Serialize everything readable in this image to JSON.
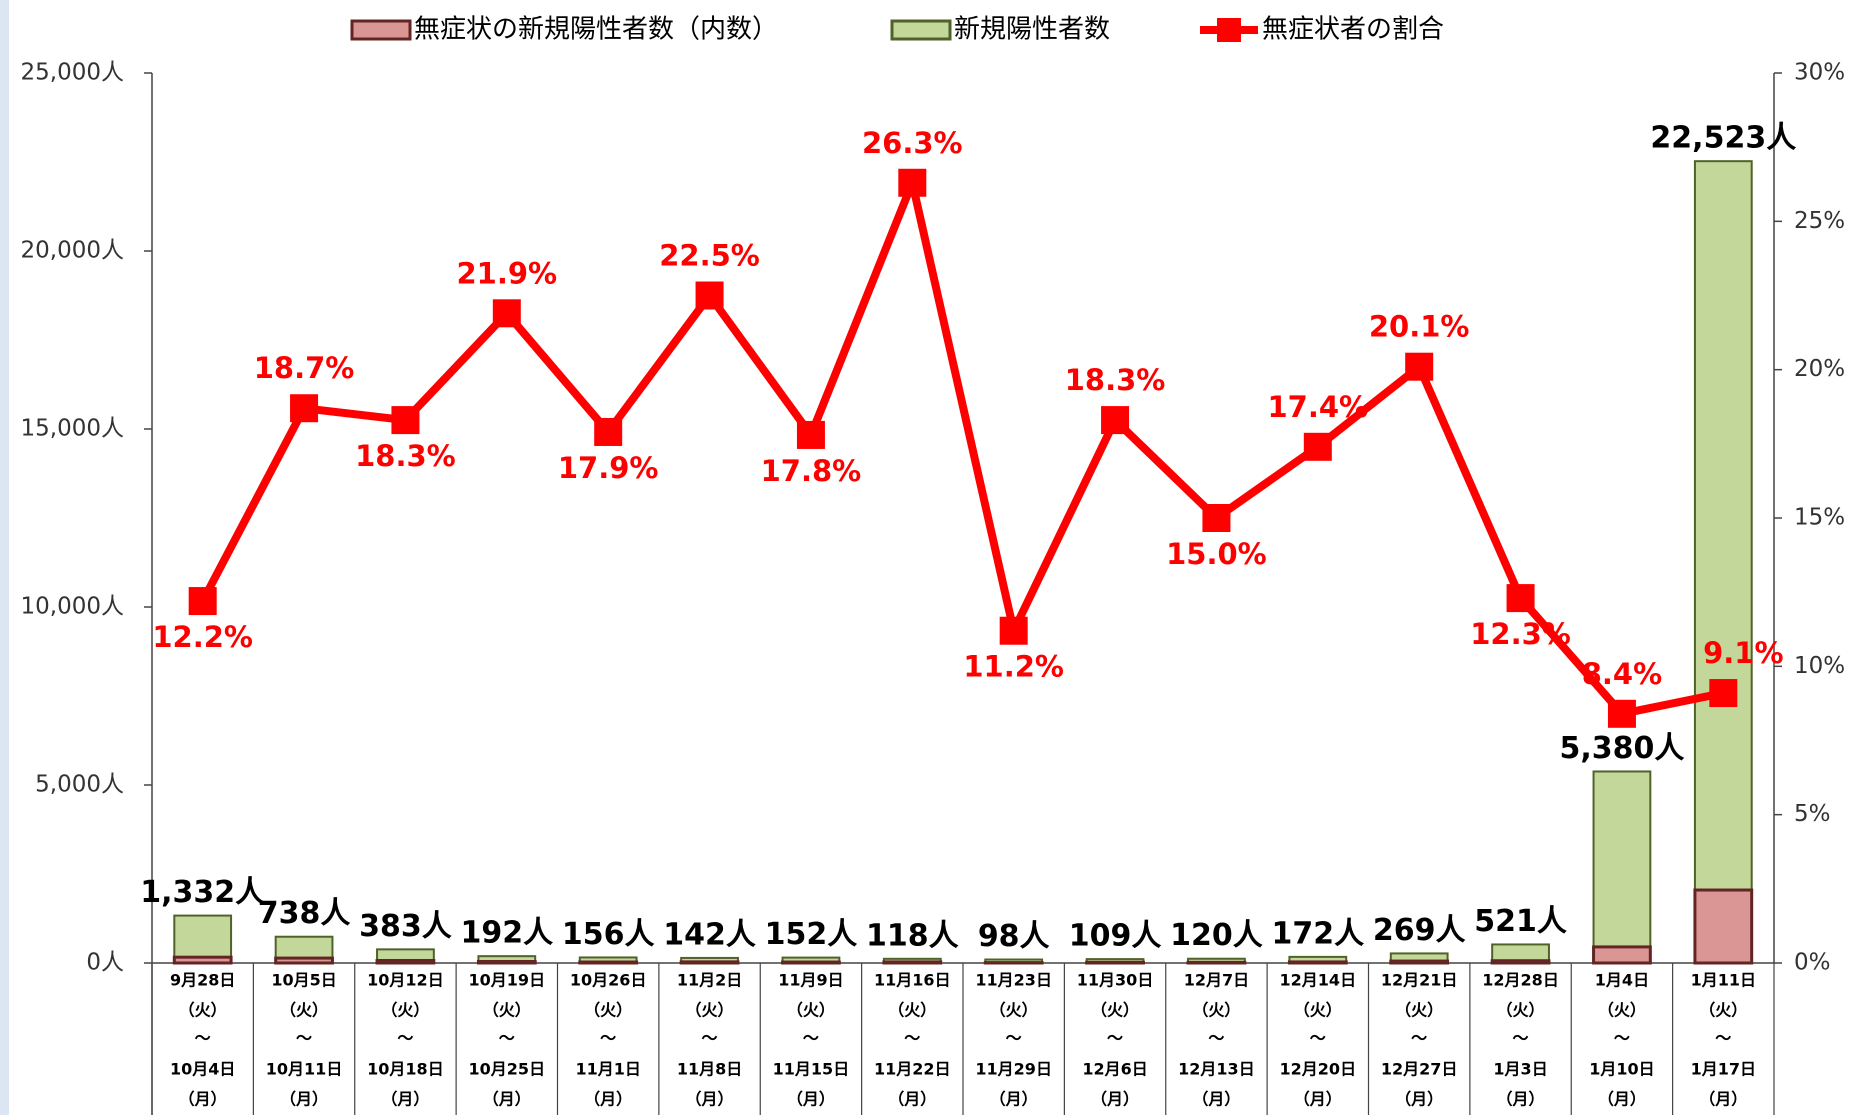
{
  "chart_data": {
    "type": "bar-line",
    "categories": [
      [
        "9月28日",
        "（火）",
        "～",
        "10月4日",
        "（月）"
      ],
      [
        "10月5日",
        "（火）",
        "～",
        "10月11日",
        "（月）"
      ],
      [
        "10月12日",
        "（火）",
        "～",
        "10月18日",
        "（月）"
      ],
      [
        "10月19日",
        "（火）",
        "～",
        "10月25日",
        "（月）"
      ],
      [
        "10月26日",
        "（火）",
        "～",
        "11月1日",
        "（月）"
      ],
      [
        "11月2日",
        "（火）",
        "～",
        "11月8日",
        "（月）"
      ],
      [
        "11月9日",
        "（火）",
        "～",
        "11月15日",
        "（月）"
      ],
      [
        "11月16日",
        "（火）",
        "～",
        "11月22日",
        "（月）"
      ],
      [
        "11月23日",
        "（火）",
        "～",
        "11月29日",
        "（月）"
      ],
      [
        "11月30日",
        "（火）",
        "～",
        "12月6日",
        "（月）"
      ],
      [
        "12月7日",
        "（火）",
        "～",
        "12月13日",
        "（月）"
      ],
      [
        "12月14日",
        "（火）",
        "～",
        "12月20日",
        "（月）"
      ],
      [
        "12月21日",
        "（火）",
        "～",
        "12月27日",
        "（月）"
      ],
      [
        "12月28日",
        "（火）",
        "～",
        "1月3日",
        "（月）"
      ],
      [
        "1月4日",
        "（火）",
        "～",
        "1月10日",
        "（月）"
      ],
      [
        "1月11日",
        "（火）",
        "～",
        "1月17日",
        "（月）"
      ]
    ],
    "series": [
      {
        "name": "無症状の新規陽性者数（内数）",
        "color": "#da9694",
        "edge": "#632523",
        "values": [
          163,
          138,
          70,
          42,
          28,
          32,
          27,
          31,
          11,
          20,
          18,
          30,
          54,
          64,
          452,
          2050
        ]
      },
      {
        "name": "新規陽性者数",
        "color": "#c4d79b",
        "edge": "#4f6228",
        "values": [
          1332,
          738,
          383,
          192,
          156,
          142,
          152,
          118,
          98,
          109,
          120,
          172,
          269,
          521,
          5380,
          22523
        ],
        "value_labels": [
          "1,332人",
          "738人",
          "383人",
          "192人",
          "156人",
          "142人",
          "152人",
          "118人",
          "98人",
          "109人",
          "120人",
          "172人",
          "269人",
          "521人",
          "5,380人",
          "22,523人"
        ]
      },
      {
        "name": "無症状者の割合",
        "color": "#ff0000",
        "axis": "y2",
        "values": [
          12.2,
          18.7,
          18.3,
          21.9,
          17.9,
          22.5,
          17.8,
          26.3,
          11.2,
          18.3,
          15.0,
          17.4,
          20.1,
          12.3,
          8.4,
          9.1
        ],
        "value_labels": [
          "12.2%",
          "18.7%",
          "18.3%",
          "21.9%",
          "17.9%",
          "22.5%",
          "17.8%",
          "26.3%",
          "11.2%",
          "18.3%",
          "15.0%",
          "17.4%",
          "20.1%",
          "12.3%",
          "8.4%",
          "9.1%"
        ]
      }
    ],
    "ylim": [
      0,
      25000
    ],
    "yticks": [
      {
        "value": 0,
        "label": "0人"
      },
      {
        "value": 5000,
        "label": "5,000人"
      },
      {
        "value": 10000,
        "label": "10,000人"
      },
      {
        "value": 15000,
        "label": "15,000人"
      },
      {
        "value": 20000,
        "label": "20,000人"
      },
      {
        "value": 25000,
        "label": "25,000人"
      }
    ],
    "y2lim": [
      0,
      30
    ],
    "y2ticks": [
      {
        "value": 0,
        "label": "0%"
      },
      {
        "value": 5,
        "label": "5%"
      },
      {
        "value": 10,
        "label": "10%"
      },
      {
        "value": 15,
        "label": "15%"
      },
      {
        "value": 20,
        "label": "20%"
      },
      {
        "value": 25,
        "label": "25%"
      },
      {
        "value": 30,
        "label": "30%"
      }
    ],
    "legend": "top"
  }
}
